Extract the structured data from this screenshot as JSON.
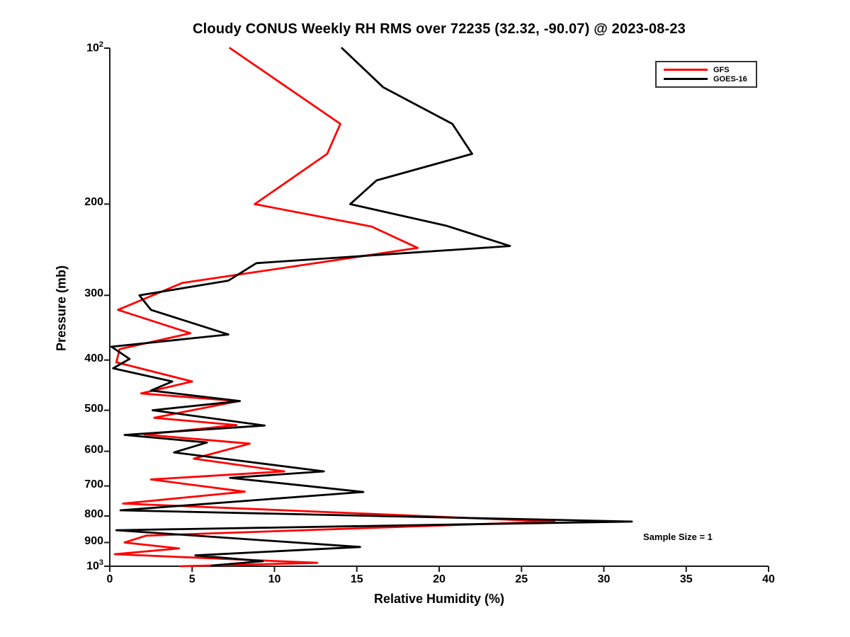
{
  "figure": {
    "title": "Cloudy CONUS Weekly RH RMS over 72235 (32.32, -90.07) @ 2023-08-23",
    "annotation": "Sample Size = 1"
  },
  "axes": {
    "x": {
      "label": "Relative Humidity (%)",
      "ticks": [
        0,
        5,
        10,
        15,
        20,
        25,
        30,
        35,
        40
      ],
      "range": [
        0,
        40
      ]
    },
    "y": {
      "label": "Pressure (mb)",
      "scale": "log10",
      "range": [
        100,
        1000
      ],
      "ticks": [
        {
          "p": 100,
          "base": "10",
          "exp": "2"
        },
        {
          "p": 200,
          "label": "200"
        },
        {
          "p": 300,
          "label": "300"
        },
        {
          "p": 400,
          "label": "400"
        },
        {
          "p": 500,
          "label": "500"
        },
        {
          "p": 600,
          "label": "600"
        },
        {
          "p": 700,
          "label": "700"
        },
        {
          "p": 800,
          "label": "800"
        },
        {
          "p": 900,
          "label": "900"
        },
        {
          "p": 1000,
          "base": "10",
          "exp": "3"
        }
      ]
    }
  },
  "colors": {
    "axis": "#1a1a1a",
    "gfs": "#ff0000",
    "goes16": "#000000"
  },
  "chart_data": {
    "type": "line",
    "title": "Cloudy CONUS Weekly RH RMS over 72235 (32.32, -90.07) @ 2023-08-23",
    "xlabel": "Relative Humidity (%)",
    "ylabel": "Pressure (mb)",
    "x_range": [
      0,
      40
    ],
    "y_range": [
      100,
      1000
    ],
    "y_scale": "log10",
    "grid": false,
    "legend_position": "top-right",
    "annotation": "Sample Size = 1",
    "point_format": "[pressure_mb, rh_percent]",
    "series": [
      {
        "name": "GFS",
        "color": "#ff0000",
        "points": [
          [
            100,
            7.3
          ],
          [
            140,
            14.0
          ],
          [
            160,
            13.2
          ],
          [
            200,
            8.8
          ],
          [
            221,
            15.9
          ],
          [
            243,
            18.7
          ],
          [
            284,
            4.4
          ],
          [
            320,
            0.5
          ],
          [
            355,
            4.9
          ],
          [
            381,
            0.6
          ],
          [
            404,
            0.4
          ],
          [
            440,
            5.0
          ],
          [
            464,
            1.9
          ],
          [
            480,
            7.8
          ],
          [
            517,
            2.7
          ],
          [
            534,
            7.7
          ],
          [
            557,
            2.1
          ],
          [
            580,
            8.5
          ],
          [
            620,
            5.1
          ],
          [
            656,
            10.6
          ],
          [
            680,
            2.5
          ],
          [
            718,
            8.2
          ],
          [
            757,
            0.8
          ],
          [
            820,
            27.0
          ],
          [
            873,
            2.2
          ],
          [
            900,
            0.9
          ],
          [
            924,
            4.2
          ],
          [
            948,
            0.3
          ],
          [
            985,
            12.6
          ],
          [
            1000,
            4.3
          ]
        ]
      },
      {
        "name": "GOES-16",
        "color": "#000000",
        "points": [
          [
            100,
            14.1
          ],
          [
            119,
            16.6
          ],
          [
            140,
            20.8
          ],
          [
            160,
            22.0
          ],
          [
            180,
            16.2
          ],
          [
            200,
            14.6
          ],
          [
            220,
            20.4
          ],
          [
            241,
            24.3
          ],
          [
            260,
            8.9
          ],
          [
            281,
            7.2
          ],
          [
            300,
            1.8
          ],
          [
            320,
            2.5
          ],
          [
            357,
            7.2
          ],
          [
            377,
            0.1
          ],
          [
            398,
            1.2
          ],
          [
            415,
            0.2
          ],
          [
            440,
            3.8
          ],
          [
            458,
            2.5
          ],
          [
            480,
            7.9
          ],
          [
            500,
            2.6
          ],
          [
            535,
            9.4
          ],
          [
            558,
            0.9
          ],
          [
            577,
            5.9
          ],
          [
            603,
            3.9
          ],
          [
            656,
            13.0
          ],
          [
            675,
            7.3
          ],
          [
            719,
            15.4
          ],
          [
            780,
            0.65
          ],
          [
            820,
            31.7
          ],
          [
            852,
            0.4
          ],
          [
            918,
            15.2
          ],
          [
            953,
            5.2
          ],
          [
            978,
            9.3
          ],
          [
            997,
            6.2
          ]
        ]
      }
    ]
  }
}
